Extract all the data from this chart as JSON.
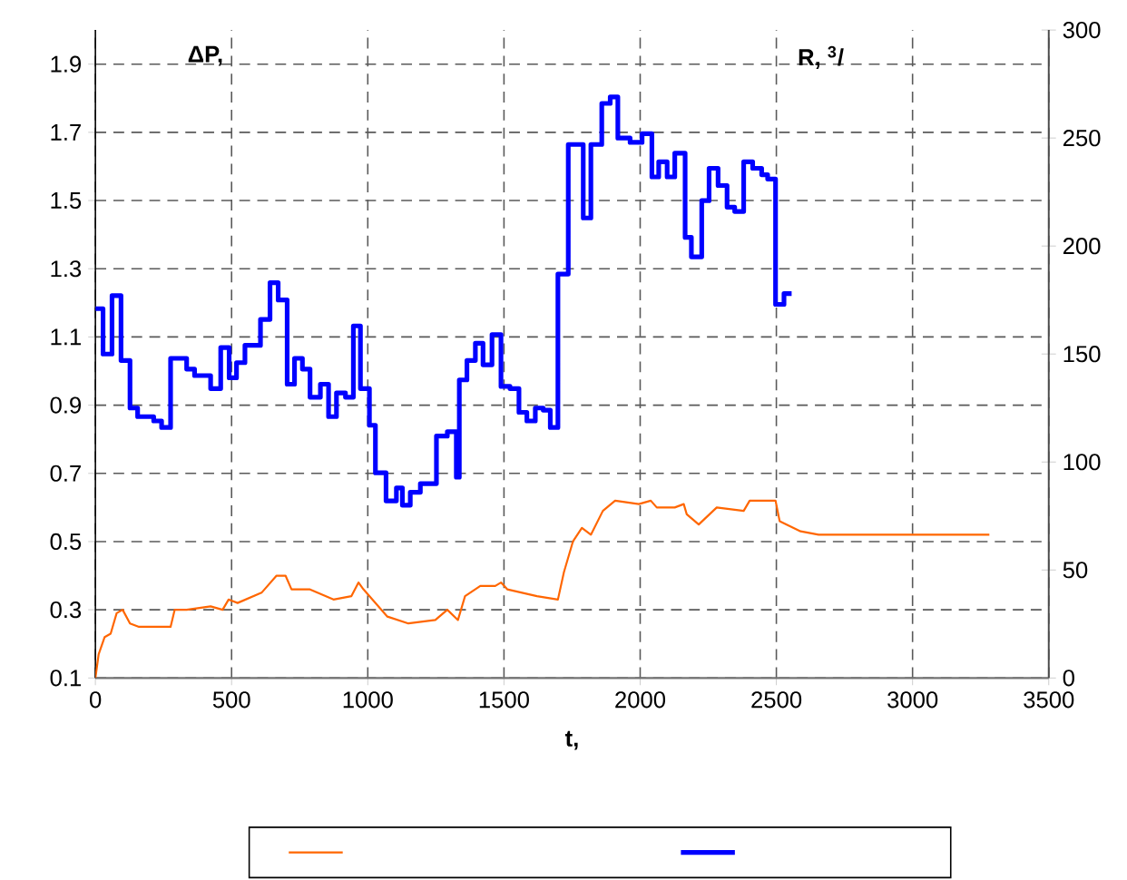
{
  "chart_data": {
    "type": "line",
    "xlabel": "t,",
    "ylabel": "ΔP,",
    "y2label": "R, $^{3}$/",
    "xlim": [
      0,
      3500
    ],
    "xticks": [
      0,
      500,
      1000,
      1500,
      2000,
      2500,
      3000,
      3500
    ],
    "ylim": [
      0.1,
      2.0
    ],
    "yticks": [
      0.1,
      0.3,
      0.5,
      0.7,
      0.9,
      1.1,
      1.3,
      1.5,
      1.7,
      1.9
    ],
    "y2lim": [
      0,
      300
    ],
    "y2ticks": [
      0,
      50,
      100,
      150,
      200,
      250,
      300
    ],
    "grid": true,
    "series": [
      {
        "color": "#ff6600",
        "x": [
          0,
          12,
          34,
          56,
          78,
          100,
          127,
          160,
          276,
          291,
          335,
          423,
          467,
          489,
          522,
          610,
          665,
          698,
          720,
          786,
          874,
          940,
          966,
          984,
          1072,
          1149,
          1248,
          1292,
          1331,
          1357,
          1413,
          1468,
          1489,
          1512,
          1621,
          1698,
          1720,
          1753,
          1786,
          1819,
          1863,
          1908,
          1995,
          2039,
          2061,
          2127,
          2160,
          2171,
          2215,
          2281,
          2380,
          2402,
          2497,
          2512,
          2589,
          2655,
          2787,
          3072,
          3095,
          3282
        ],
        "values": [
          0.1,
          0.17,
          0.22,
          0.23,
          0.29,
          0.3,
          0.26,
          0.25,
          0.25,
          0.3,
          0.3,
          0.31,
          0.3,
          0.33,
          0.32,
          0.35,
          0.4,
          0.4,
          0.36,
          0.36,
          0.33,
          0.34,
          0.38,
          0.36,
          0.28,
          0.26,
          0.27,
          0.3,
          0.27,
          0.34,
          0.37,
          0.37,
          0.38,
          0.36,
          0.34,
          0.33,
          0.41,
          0.5,
          0.54,
          0.52,
          0.59,
          0.62,
          0.61,
          0.62,
          0.6,
          0.6,
          0.61,
          0.58,
          0.55,
          0.6,
          0.59,
          0.62,
          0.62,
          0.56,
          0.53,
          0.52,
          0.52,
          0.52,
          0.52,
          0.52
        ]
      },
      {
        "type": "step",
        "axis": "y2",
        "color": "#0000ff",
        "x": [
          0,
          28,
          61,
          94,
          127,
          155,
          214,
          243,
          276,
          335,
          364,
          423,
          460,
          491,
          518,
          549,
          606,
          641,
          671,
          704,
          731,
          760,
          788,
          826,
          856,
          885,
          918,
          947,
          973,
          1006,
          1028,
          1067,
          1105,
          1127,
          1156,
          1193,
          1252,
          1292,
          1325,
          1336,
          1364,
          1395,
          1423,
          1456,
          1489,
          1522,
          1555,
          1584,
          1615,
          1644,
          1670,
          1698,
          1736,
          1791,
          1819,
          1859,
          1890,
          1918,
          1963,
          2007,
          2043,
          2068,
          2099,
          2127,
          2165,
          2188,
          2226,
          2253,
          2286,
          2319,
          2347,
          2380,
          2413,
          2446,
          2468,
          2497,
          2528,
          2556
        ],
        "values": [
          171,
          150,
          177,
          147,
          125,
          121,
          119,
          116,
          148,
          143,
          140,
          134,
          153,
          139,
          146,
          154,
          166,
          183,
          175,
          136,
          148,
          143,
          130,
          136,
          121,
          132,
          130,
          163,
          134,
          117,
          95,
          82,
          88,
          80,
          86,
          90,
          112,
          114,
          93,
          138,
          147,
          155,
          145,
          159,
          135,
          134,
          123,
          119,
          125,
          124,
          116,
          187,
          247,
          213,
          247,
          266,
          269,
          250,
          248,
          252,
          232,
          239,
          232,
          243,
          204,
          195,
          221,
          236,
          228,
          218,
          216,
          239,
          236,
          233,
          231,
          173,
          178,
          178
        ]
      }
    ]
  }
}
